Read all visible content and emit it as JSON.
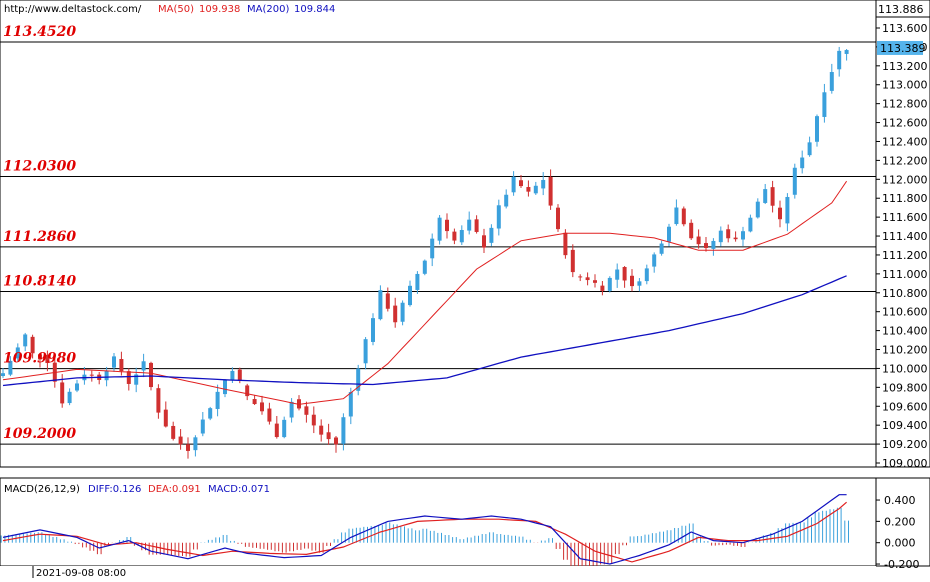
{
  "header": {
    "url": "http://www.deltastock.com/",
    "ma50_label": "MA(50)",
    "ma50_value": "109.938",
    "ma200_label": "MA(200)",
    "ma200_value": "109.844"
  },
  "price_axis": {
    "top_value": "113.886",
    "last_value": "113.389",
    "ticks": [
      "113.600",
      "113.400",
      "113.200",
      "113.000",
      "112.800",
      "112.600",
      "112.400",
      "112.200",
      "112.000",
      "111.800",
      "111.600",
      "111.400",
      "111.200",
      "111.000",
      "110.800",
      "110.600",
      "110.400",
      "110.200",
      "110.000",
      "109.800",
      "109.600",
      "109.400",
      "109.200",
      "109.000"
    ]
  },
  "levels": [
    {
      "label": "113.4520",
      "value": 113.452
    },
    {
      "label": "112.0300",
      "value": 112.03
    },
    {
      "label": "111.2860",
      "value": 111.286
    },
    {
      "label": "110.8140",
      "value": 110.814
    },
    {
      "label": "109.9980",
      "value": 109.998
    },
    {
      "label": "109.2000",
      "value": 109.2
    }
  ],
  "macd": {
    "title": "MACD(26,12,9)",
    "diff_label": "DIFF:0.126",
    "dea_label": "DEA:0.091",
    "macd_label": "MACD:0.071",
    "ticks": [
      "0.400",
      "0.200",
      "0.000",
      "-0.200"
    ]
  },
  "time_axis": {
    "first_label": "2021-09-08 08:00"
  },
  "colors": {
    "up": "#3aa0dc",
    "down": "#d03030",
    "ma50": "#e02020",
    "ma200": "#1010c0",
    "diff": "#1010c0",
    "dea": "#e02020",
    "level_text": "#e00000",
    "last_price_bg": "#55b4ec"
  },
  "chart_data": [
    {
      "type": "candlestick",
      "title": "",
      "ylim": [
        108.98,
        113.9
      ],
      "price_path": [
        [
          0,
          109.95
        ],
        [
          3,
          110.35
        ],
        [
          4,
          110.15
        ],
        [
          6,
          110.08
        ],
        [
          8,
          109.65
        ],
        [
          11,
          109.95
        ],
        [
          13,
          109.9
        ],
        [
          15,
          110.1
        ],
        [
          17,
          109.85
        ],
        [
          19,
          110.05
        ],
        [
          21,
          109.55
        ],
        [
          23,
          109.25
        ],
        [
          25,
          109.15
        ],
        [
          27,
          109.45
        ],
        [
          29,
          109.75
        ],
        [
          31,
          110.0
        ],
        [
          33,
          109.7
        ],
        [
          35,
          109.55
        ],
        [
          37,
          109.3
        ],
        [
          39,
          109.65
        ],
        [
          41,
          109.5
        ],
        [
          43,
          109.3
        ],
        [
          45,
          109.2
        ],
        [
          47,
          109.75
        ],
        [
          49,
          110.3
        ],
        [
          51,
          110.8
        ],
        [
          53,
          110.5
        ],
        [
          55,
          110.85
        ],
        [
          57,
          111.15
        ],
        [
          59,
          111.6
        ],
        [
          61,
          111.35
        ],
        [
          63,
          111.55
        ],
        [
          65,
          111.3
        ],
        [
          67,
          111.7
        ],
        [
          69,
          112.0
        ],
        [
          71,
          111.85
        ],
        [
          73,
          112.0
        ],
        [
          75,
          111.45
        ],
        [
          77,
          111.0
        ],
        [
          79,
          110.95
        ],
        [
          81,
          110.85
        ],
        [
          83,
          111.05
        ],
        [
          85,
          110.85
        ],
        [
          87,
          111.05
        ],
        [
          89,
          111.35
        ],
        [
          91,
          111.7
        ],
        [
          93,
          111.4
        ],
        [
          95,
          111.25
        ],
        [
          97,
          111.45
        ],
        [
          99,
          111.35
        ],
        [
          101,
          111.6
        ],
        [
          103,
          111.9
        ],
        [
          105,
          111.55
        ],
        [
          107,
          112.1
        ],
        [
          109,
          112.4
        ],
        [
          111,
          112.95
        ],
        [
          113,
          113.35
        ],
        [
          114,
          113.389
        ]
      ],
      "ma50": [
        [
          0,
          109.88
        ],
        [
          10,
          109.99
        ],
        [
          20,
          109.95
        ],
        [
          30,
          109.78
        ],
        [
          40,
          109.62
        ],
        [
          46,
          109.68
        ],
        [
          52,
          110.05
        ],
        [
          58,
          110.55
        ],
        [
          64,
          111.05
        ],
        [
          70,
          111.35
        ],
        [
          76,
          111.43
        ],
        [
          82,
          111.43
        ],
        [
          88,
          111.38
        ],
        [
          94,
          111.25
        ],
        [
          100,
          111.25
        ],
        [
          106,
          111.42
        ],
        [
          112,
          111.75
        ],
        [
          114,
          111.98
        ]
      ],
      "ma200": [
        [
          0,
          109.82
        ],
        [
          10,
          109.9
        ],
        [
          20,
          109.92
        ],
        [
          30,
          109.88
        ],
        [
          40,
          109.85
        ],
        [
          50,
          109.83
        ],
        [
          60,
          109.9
        ],
        [
          70,
          110.12
        ],
        [
          80,
          110.26
        ],
        [
          90,
          110.4
        ],
        [
          100,
          110.58
        ],
        [
          108,
          110.78
        ],
        [
          114,
          110.98
        ]
      ],
      "levels": [
        113.452,
        112.03,
        111.286,
        110.814,
        109.998,
        109.2
      ],
      "last_price": 113.389,
      "ylabel": "",
      "xlabel": ""
    },
    {
      "type": "line",
      "title": "MACD(26,12,9)",
      "ylim": [
        -0.28,
        0.52
      ],
      "series": [
        {
          "name": "DIFF",
          "values": [
            [
              0,
              0.05
            ],
            [
              5,
              0.12
            ],
            [
              10,
              0.05
            ],
            [
              13,
              -0.05
            ],
            [
              17,
              0.02
            ],
            [
              20,
              -0.08
            ],
            [
              25,
              -0.15
            ],
            [
              30,
              -0.05
            ],
            [
              33,
              -0.1
            ],
            [
              38,
              -0.14
            ],
            [
              43,
              -0.12
            ],
            [
              47,
              0.05
            ],
            [
              52,
              0.2
            ],
            [
              57,
              0.25
            ],
            [
              62,
              0.22
            ],
            [
              66,
              0.25
            ],
            [
              70,
              0.22
            ],
            [
              74,
              0.15
            ],
            [
              78,
              -0.15
            ],
            [
              82,
              -0.2
            ],
            [
              86,
              -0.12
            ],
            [
              90,
              -0.02
            ],
            [
              93,
              0.1
            ],
            [
              96,
              0.02
            ],
            [
              100,
              0.0
            ],
            [
              104,
              0.08
            ],
            [
              108,
              0.2
            ],
            [
              111,
              0.35
            ],
            [
              113,
              0.45
            ],
            [
              114,
              0.45
            ]
          ]
        },
        {
          "name": "DEA",
          "values": [
            [
              0,
              0.02
            ],
            [
              5,
              0.08
            ],
            [
              10,
              0.06
            ],
            [
              14,
              -0.02
            ],
            [
              18,
              0.0
            ],
            [
              22,
              -0.06
            ],
            [
              27,
              -0.12
            ],
            [
              31,
              -0.08
            ],
            [
              36,
              -0.1
            ],
            [
              41,
              -0.11
            ],
            [
              46,
              -0.04
            ],
            [
              51,
              0.1
            ],
            [
              56,
              0.2
            ],
            [
              62,
              0.22
            ],
            [
              67,
              0.22
            ],
            [
              72,
              0.2
            ],
            [
              76,
              0.08
            ],
            [
              80,
              -0.08
            ],
            [
              85,
              -0.18
            ],
            [
              90,
              -0.08
            ],
            [
              94,
              0.05
            ],
            [
              98,
              0.02
            ],
            [
              102,
              0.02
            ],
            [
              106,
              0.06
            ],
            [
              110,
              0.18
            ],
            [
              113,
              0.32
            ],
            [
              114,
              0.38
            ]
          ]
        }
      ],
      "histogram_trend": "MACD bars: blue above zero, red below zero",
      "ylabel": "",
      "xlabel": ""
    }
  ]
}
